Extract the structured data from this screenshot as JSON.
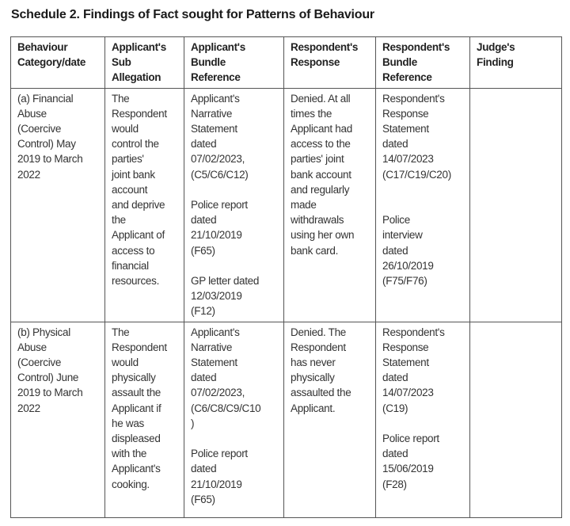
{
  "title": "Schedule 2. Findings of Fact sought for Patterns of Behaviour",
  "headers": [
    "Behaviour\nCategory/date",
    "Applicant's\nSub\nAllegation",
    "Applicant's\nBundle\nReference",
    "Respondent's\nResponse",
    "Respondent's\nBundle\nReference",
    "Judge's\nFinding"
  ],
  "rows": [
    {
      "category": "(a) Financial\nAbuse\n(Coercive\nControl) May\n2019 to March\n2022",
      "allegation": "The\nRespondent\nwould\ncontrol the\nparties'\njoint bank\naccount\nand deprive\nthe\nApplicant of\naccess to\nfinancial\nresources.",
      "applicant_ref": "Applicant's\nNarrative\nStatement\ndated\n07/02/2023,\n(C5/C6/C12)\n\nPolice report\ndated\n21/10/2019\n(F65)\n\nGP letter dated\n12/03/2019\n(F12)",
      "response": "Denied. At all\ntimes the\nApplicant had\naccess to the\nparties' joint\nbank account\nand regularly\nmade\nwithdrawals\nusing her own\nbank card.",
      "respondent_ref": "Respondent's\nResponse\nStatement\ndated\n14/07/2023\n(C17/C19/C20)\n\n\nPolice\ninterview\ndated\n26/10/2019\n(F75/F76)",
      "finding": ""
    },
    {
      "category": "(b) Physical\nAbuse\n(Coercive\nControl) June\n2019 to March\n2022",
      "allegation": "The\nRespondent\nwould\nphysically\nassault the\nApplicant if\nhe was\ndispleased\nwith the\nApplicant's\ncooking.",
      "applicant_ref": "Applicant's\nNarrative\nStatement\ndated\n07/02/2023,\n(C6/C8/C9/C10\n)\n\nPolice report\ndated\n21/10/2019\n(F65)",
      "response": "Denied. The\nRespondent\nhas never\nphysically\nassaulted the\nApplicant.",
      "respondent_ref": "Respondent's\nResponse\nStatement\ndated\n14/07/2023\n(C19)\n\nPolice report\ndated\n15/06/2019\n(F28)",
      "finding": ""
    }
  ]
}
